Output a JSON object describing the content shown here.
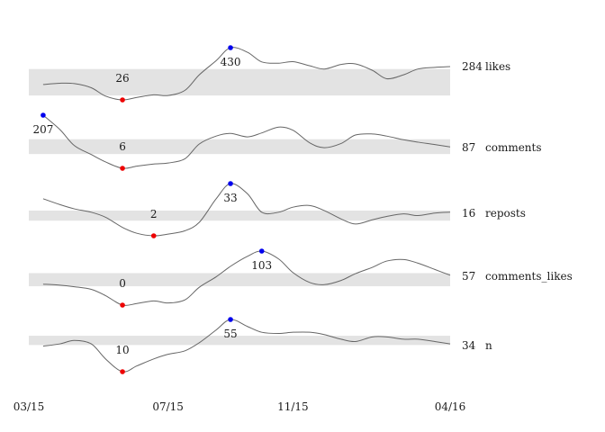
{
  "chart_data": {
    "type": "line",
    "chart_style": "sparklines with shaded interquartile band",
    "x_ticks": [
      "03/15",
      "07/15",
      "11/15",
      "04/16"
    ],
    "x_range": [
      "03/15",
      "04/16"
    ],
    "colors": {
      "line": "#666666",
      "band": "#e3e3e3",
      "min_marker": "#ee0000",
      "max_marker": "#0000ee",
      "text": "#1a1a1a"
    },
    "series": [
      {
        "name": "likes",
        "last": 284,
        "min": {
          "x": "06/01",
          "value": 26
        },
        "max": {
          "x": "09/15",
          "value": 430
        },
        "band": [
          60,
          265
        ],
        "y_range": [
          26,
          430
        ],
        "points": [
          [
            "03/15",
            145
          ],
          [
            "04/01",
            155
          ],
          [
            "04/15",
            152
          ],
          [
            "05/01",
            120
          ],
          [
            "05/15",
            55
          ],
          [
            "06/01",
            26
          ],
          [
            "06/15",
            45
          ],
          [
            "07/01",
            65
          ],
          [
            "07/15",
            60
          ],
          [
            "08/01",
            100
          ],
          [
            "08/15",
            220
          ],
          [
            "09/01",
            330
          ],
          [
            "09/15",
            430
          ],
          [
            "10/01",
            395
          ],
          [
            "10/15",
            320
          ],
          [
            "11/01",
            310
          ],
          [
            "11/15",
            322
          ],
          [
            "12/01",
            290
          ],
          [
            "12/15",
            265
          ],
          [
            "01/01",
            300
          ],
          [
            "01/15",
            305
          ],
          [
            "02/01",
            255
          ],
          [
            "02/15",
            190
          ],
          [
            "03/01",
            220
          ],
          [
            "03/15",
            265
          ],
          [
            "04/01",
            278
          ],
          [
            "04/16",
            284
          ]
        ]
      },
      {
        "name": "comments",
        "last": 87,
        "min": {
          "x": "06/01",
          "value": 6
        },
        "max": {
          "x": "03/15",
          "value": 207
        },
        "band": [
          60,
          116
        ],
        "y_range": [
          6,
          207
        ],
        "points": [
          [
            "03/15",
            207
          ],
          [
            "04/01",
            152
          ],
          [
            "04/15",
            92
          ],
          [
            "05/01",
            58
          ],
          [
            "05/15",
            30
          ],
          [
            "06/01",
            6
          ],
          [
            "06/15",
            14
          ],
          [
            "07/01",
            22
          ],
          [
            "07/15",
            26
          ],
          [
            "08/01",
            42
          ],
          [
            "08/15",
            98
          ],
          [
            "09/01",
            128
          ],
          [
            "09/15",
            138
          ],
          [
            "10/01",
            125
          ],
          [
            "10/15",
            140
          ],
          [
            "11/01",
            162
          ],
          [
            "11/15",
            150
          ],
          [
            "12/01",
            102
          ],
          [
            "12/15",
            84
          ],
          [
            "01/01",
            100
          ],
          [
            "01/15",
            132
          ],
          [
            "02/01",
            136
          ],
          [
            "02/15",
            128
          ],
          [
            "03/01",
            114
          ],
          [
            "03/15",
            105
          ],
          [
            "04/01",
            96
          ],
          [
            "04/16",
            87
          ]
        ]
      },
      {
        "name": "reposts",
        "last": 16,
        "min": {
          "x": "07/01",
          "value": 2
        },
        "max": {
          "x": "09/15",
          "value": 33
        },
        "band": [
          11,
          17
        ],
        "y_range": [
          2,
          33
        ],
        "points": [
          [
            "03/15",
            24
          ],
          [
            "04/01",
            20.5
          ],
          [
            "04/15",
            18
          ],
          [
            "05/01",
            16
          ],
          [
            "05/15",
            13
          ],
          [
            "06/01",
            7
          ],
          [
            "06/15",
            3.5
          ],
          [
            "07/01",
            2
          ],
          [
            "07/15",
            3
          ],
          [
            "08/01",
            5
          ],
          [
            "08/15",
            10
          ],
          [
            "09/01",
            24
          ],
          [
            "09/15",
            33
          ],
          [
            "10/01",
            27
          ],
          [
            "10/15",
            16
          ],
          [
            "11/01",
            16
          ],
          [
            "11/15",
            19
          ],
          [
            "12/01",
            20
          ],
          [
            "12/15",
            17
          ],
          [
            "01/01",
            12
          ],
          [
            "01/15",
            9
          ],
          [
            "02/01",
            11.5
          ],
          [
            "02/15",
            13.5
          ],
          [
            "03/01",
            15
          ],
          [
            "03/15",
            14
          ],
          [
            "04/01",
            15.5
          ],
          [
            "04/16",
            16
          ]
        ]
      },
      {
        "name": "comments_likes",
        "last": 57,
        "min": {
          "x": "06/01",
          "value": 0
        },
        "max": {
          "x": "10/15",
          "value": 103
        },
        "band": [
          36,
          61
        ],
        "y_range": [
          0,
          103
        ],
        "points": [
          [
            "03/15",
            40
          ],
          [
            "04/01",
            38
          ],
          [
            "04/15",
            35
          ],
          [
            "05/01",
            30
          ],
          [
            "05/15",
            18
          ],
          [
            "06/01",
            0
          ],
          [
            "06/15",
            3
          ],
          [
            "07/01",
            8
          ],
          [
            "07/15",
            4
          ],
          [
            "08/01",
            10
          ],
          [
            "08/15",
            34
          ],
          [
            "09/01",
            54
          ],
          [
            "09/15",
            74
          ],
          [
            "10/01",
            93
          ],
          [
            "10/15",
            103
          ],
          [
            "11/01",
            88
          ],
          [
            "11/15",
            62
          ],
          [
            "12/01",
            43
          ],
          [
            "12/15",
            39
          ],
          [
            "01/01",
            47
          ],
          [
            "01/15",
            60
          ],
          [
            "02/01",
            72
          ],
          [
            "02/15",
            84
          ],
          [
            "03/01",
            87
          ],
          [
            "03/15",
            80
          ],
          [
            "04/01",
            68
          ],
          [
            "04/16",
            57
          ]
        ]
      },
      {
        "name": "n",
        "last": 34,
        "min": {
          "x": "06/01",
          "value": 10
        },
        "max": {
          "x": "09/15",
          "value": 55
        },
        "band": [
          33,
          41
        ],
        "y_range": [
          10,
          55
        ],
        "points": [
          [
            "03/15",
            32
          ],
          [
            "04/01",
            34
          ],
          [
            "04/15",
            37
          ],
          [
            "05/01",
            34
          ],
          [
            "05/15",
            21
          ],
          [
            "06/01",
            10
          ],
          [
            "06/15",
            15
          ],
          [
            "07/01",
            21
          ],
          [
            "07/15",
            25
          ],
          [
            "08/01",
            28
          ],
          [
            "08/15",
            35
          ],
          [
            "09/01",
            46
          ],
          [
            "09/15",
            55
          ],
          [
            "10/01",
            49
          ],
          [
            "10/15",
            44
          ],
          [
            "11/01",
            43
          ],
          [
            "11/15",
            44
          ],
          [
            "12/01",
            44
          ],
          [
            "12/15",
            42
          ],
          [
            "01/01",
            38
          ],
          [
            "01/15",
            36
          ],
          [
            "02/01",
            40
          ],
          [
            "02/15",
            40
          ],
          [
            "03/01",
            38
          ],
          [
            "03/15",
            38
          ],
          [
            "04/01",
            36
          ],
          [
            "04/16",
            34
          ]
        ]
      }
    ]
  }
}
